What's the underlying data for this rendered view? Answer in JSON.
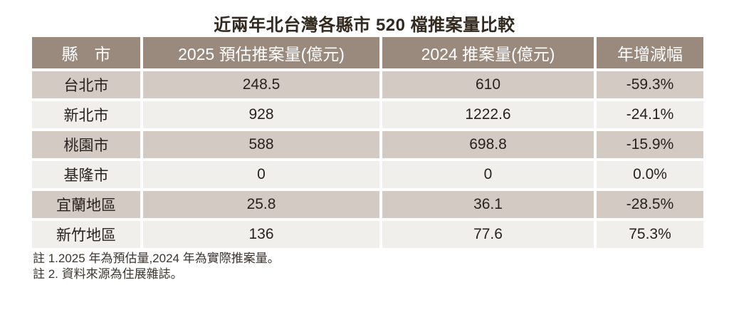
{
  "title": "近兩年北台灣各縣市 520 檔推案量比較",
  "colors": {
    "header_bg": "#9a8a7e",
    "header_text": "#ffffff",
    "row_odd_bg": "#d3cac4",
    "row_even_bg": "#f1efec",
    "body_text": "#27221e",
    "title_text": "#32291f"
  },
  "table": {
    "headers": [
      "縣　市",
      "2025 預估推案量(億元)",
      "2024 推案量(億元)",
      "年增減幅"
    ],
    "rows": [
      {
        "city": "台北市",
        "v2025": "248.5",
        "v2024": "610",
        "yoy": "-59.3%"
      },
      {
        "city": "新北市",
        "v2025": "928",
        "v2024": "1222.6",
        "yoy": "-24.1%"
      },
      {
        "city": "桃園市",
        "v2025": "588",
        "v2024": "698.8",
        "yoy": "-15.9%"
      },
      {
        "city": "基隆市",
        "v2025": "0",
        "v2024": "0",
        "yoy": "0.0%"
      },
      {
        "city": "宜蘭地區",
        "v2025": "25.8",
        "v2024": "36.1",
        "yoy": "-28.5%"
      },
      {
        "city": "新竹地區",
        "v2025": "136",
        "v2024": "77.6",
        "yoy": "75.3%"
      }
    ]
  },
  "notes": {
    "line1": "註 1.2025 年為預估量,2024 年為實際推案量。",
    "line2": "註 2. 資料來源為住展雜誌。"
  },
  "chart_data": {
    "type": "table",
    "title": "近兩年北台灣各縣市 520 檔推案量比較",
    "columns": [
      "縣市",
      "2025 預估推案量(億元)",
      "2024 推案量(億元)",
      "年增減幅"
    ],
    "rows": [
      [
        "台北市",
        248.5,
        610,
        "-59.3%"
      ],
      [
        "新北市",
        928,
        1222.6,
        "-24.1%"
      ],
      [
        "桃園市",
        588,
        698.8,
        "-15.9%"
      ],
      [
        "基隆市",
        0,
        0,
        "0.0%"
      ],
      [
        "宜蘭地區",
        25.8,
        36.1,
        "-28.5%"
      ],
      [
        "新竹地區",
        136,
        77.6,
        "75.3%"
      ]
    ],
    "notes": [
      "註 1.2025 年為預估量,2024 年為實際推案量。",
      "註 2. 資料來源為住展雜誌。"
    ]
  }
}
